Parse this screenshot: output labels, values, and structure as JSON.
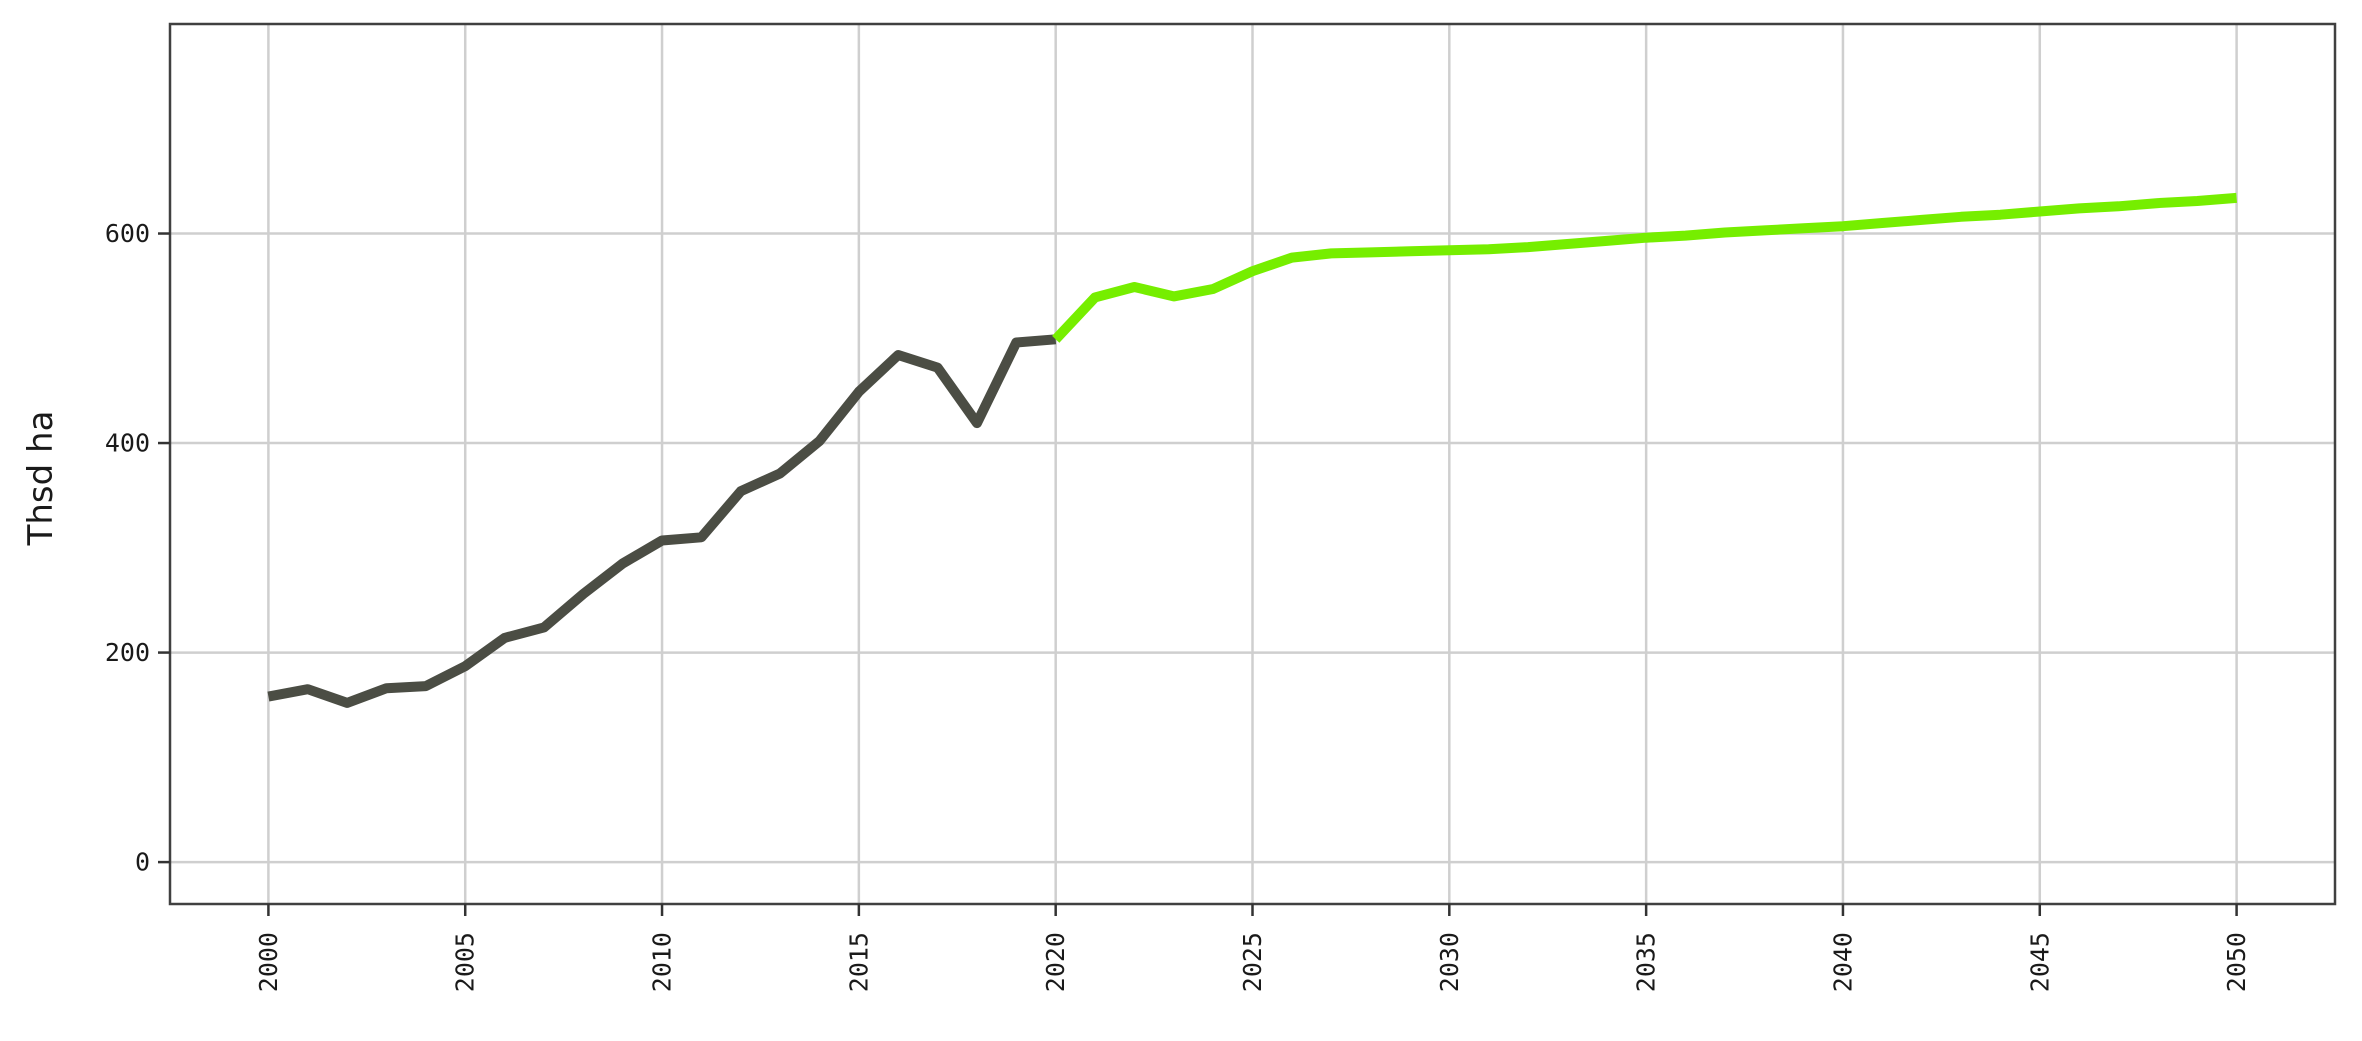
{
  "chart_data": {
    "type": "line",
    "title": "",
    "xlabel": "",
    "ylabel": "Thsd ha",
    "xlim": [
      1997.5,
      2052.5
    ],
    "ylim": [
      -40,
      800
    ],
    "x_ticks": [
      "2000",
      "2005",
      "2010",
      "2015",
      "2020",
      "2025",
      "2030",
      "2035",
      "2040",
      "2045",
      "2050"
    ],
    "y_ticks": [
      "0",
      "200",
      "400",
      "600"
    ],
    "grid": true,
    "legend": "none",
    "series": [
      {
        "color": "#4b4d44",
        "points": [
          [
            2000,
            158
          ],
          [
            2001,
            165
          ],
          [
            2002,
            152
          ],
          [
            2003,
            166
          ],
          [
            2004,
            168
          ],
          [
            2005,
            187
          ],
          [
            2006,
            214
          ],
          [
            2007,
            224
          ],
          [
            2008,
            256
          ],
          [
            2009,
            285
          ],
          [
            2010,
            307
          ],
          [
            2011,
            310
          ],
          [
            2012,
            354
          ],
          [
            2013,
            371
          ],
          [
            2014,
            402
          ],
          [
            2015,
            449
          ],
          [
            2016,
            484
          ],
          [
            2017,
            472
          ],
          [
            2018,
            419
          ],
          [
            2019,
            496
          ],
          [
            2020,
            499
          ]
        ]
      },
      {
        "color": "#76ee00",
        "points": [
          [
            2020,
            499
          ],
          [
            2021,
            539
          ],
          [
            2022,
            549
          ],
          [
            2023,
            540
          ],
          [
            2024,
            547
          ],
          [
            2025,
            564
          ],
          [
            2026,
            577
          ],
          [
            2027,
            581
          ],
          [
            2028,
            582
          ],
          [
            2029,
            583
          ],
          [
            2030,
            584
          ],
          [
            2031,
            585
          ],
          [
            2032,
            587
          ],
          [
            2033,
            590
          ],
          [
            2034,
            593
          ],
          [
            2035,
            596
          ],
          [
            2036,
            598
          ],
          [
            2037,
            601
          ],
          [
            2038,
            603
          ],
          [
            2039,
            605
          ],
          [
            2040,
            607
          ],
          [
            2041,
            610
          ],
          [
            2042,
            613
          ],
          [
            2043,
            616
          ],
          [
            2044,
            618
          ],
          [
            2045,
            621
          ],
          [
            2046,
            624
          ],
          [
            2047,
            626
          ],
          [
            2048,
            629
          ],
          [
            2049,
            631
          ],
          [
            2050,
            634
          ]
        ]
      }
    ]
  }
}
